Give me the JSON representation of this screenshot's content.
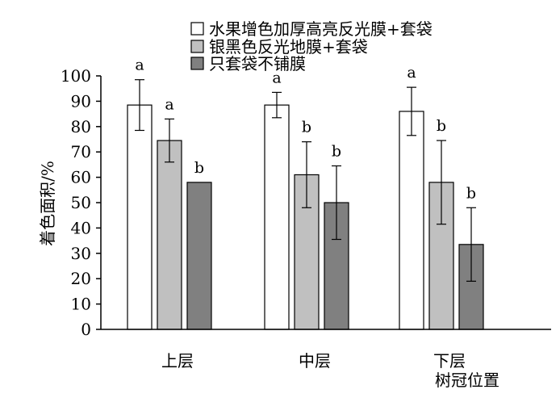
{
  "chart_data": {
    "type": "bar",
    "title": "",
    "ylabel": "着色面积/%",
    "xlabel": "树冠位置",
    "ylim": [
      0,
      100
    ],
    "yticks": [
      0,
      10,
      20,
      30,
      40,
      50,
      60,
      70,
      80,
      90,
      100
    ],
    "categories": [
      "上层",
      "中层",
      "下层"
    ],
    "legend_position": "top-right",
    "series": [
      {
        "name": "水果增色加厚高亮反光膜+套袋",
        "color": "#ffffff",
        "values": [
          88.5,
          88.5,
          86
        ],
        "errors": [
          10,
          5,
          9.5
        ],
        "labels": [
          "a",
          "a",
          "a"
        ]
      },
      {
        "name": "银黑色反光地膜+套袋",
        "color": "#c0c0c0",
        "values": [
          74.5,
          61,
          58
        ],
        "errors": [
          8.5,
          13,
          16.5
        ],
        "labels": [
          "a",
          "b",
          "b"
        ]
      },
      {
        "name": "只套袋不铺膜",
        "color": "#808080",
        "values": [
          58,
          50,
          33.5
        ],
        "errors": [
          0,
          14.5,
          14.5
        ],
        "labels": [
          "b",
          "b",
          "b"
        ]
      }
    ]
  }
}
